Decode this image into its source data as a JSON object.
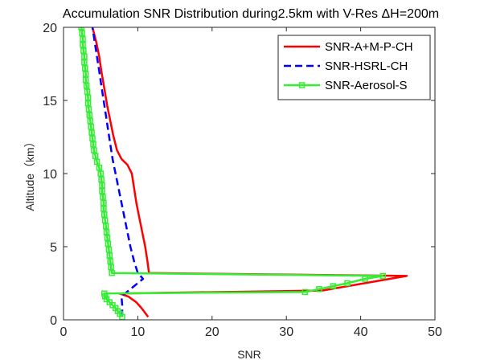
{
  "chart_data": {
    "type": "line",
    "title": "Accumulation SNR Distribution during2.5km with V-Res ΔH=200m",
    "xlabel": "SNR",
    "ylabel": "Altitude（km）",
    "xlim": [
      0,
      50
    ],
    "ylim": [
      0,
      20
    ],
    "xticks": [
      "0",
      "10",
      "20",
      "30",
      "40",
      "50"
    ],
    "yticks": [
      "0",
      "5",
      "10",
      "15",
      "20"
    ],
    "grid": false,
    "legend_position": "top-right",
    "series": [
      {
        "name": "SNR-A+M-P-CH",
        "color": "#ff0000",
        "style": "solid",
        "marker": "none",
        "points": [
          [
            11.4,
            0.2
          ],
          [
            10.5,
            0.8
          ],
          [
            9.8,
            1.2
          ],
          [
            8.7,
            1.6
          ],
          [
            7.5,
            1.8
          ],
          [
            34.8,
            2.0
          ],
          [
            46.2,
            3.0
          ],
          [
            11.5,
            3.2
          ],
          [
            11.3,
            4.0
          ],
          [
            11.0,
            5.0
          ],
          [
            10.6,
            6.0
          ],
          [
            10.2,
            7.0
          ],
          [
            9.8,
            8.0
          ],
          [
            9.5,
            9.0
          ],
          [
            9.2,
            10.0
          ],
          [
            8.6,
            10.6
          ],
          [
            7.8,
            11.0
          ],
          [
            7.2,
            11.6
          ],
          [
            6.7,
            12.6
          ],
          [
            6.3,
            13.6
          ],
          [
            5.9,
            14.6
          ],
          [
            5.5,
            15.8
          ],
          [
            5.1,
            17.0
          ],
          [
            4.8,
            18.0
          ],
          [
            4.4,
            19.0
          ],
          [
            3.9,
            20.0
          ]
        ]
      },
      {
        "name": "SNR-HSRL-CH",
        "color": "#0000ff",
        "style": "dashed",
        "marker": "none",
        "points": [
          [
            7.9,
            0.2
          ],
          [
            7.9,
            1.0
          ],
          [
            7.8,
            1.6
          ],
          [
            10.7,
            2.8
          ],
          [
            10.0,
            3.2
          ],
          [
            9.5,
            4.0
          ],
          [
            9.0,
            5.0
          ],
          [
            8.6,
            6.0
          ],
          [
            8.2,
            7.0
          ],
          [
            7.8,
            8.0
          ],
          [
            7.4,
            9.0
          ],
          [
            7.0,
            10.0
          ],
          [
            6.6,
            11.0
          ],
          [
            6.3,
            12.0
          ],
          [
            6.0,
            13.0
          ],
          [
            5.7,
            14.0
          ],
          [
            5.4,
            15.0
          ],
          [
            5.1,
            16.0
          ],
          [
            4.8,
            17.0
          ],
          [
            4.5,
            18.0
          ],
          [
            4.2,
            19.0
          ],
          [
            3.9,
            20.0
          ]
        ]
      },
      {
        "name": "SNR-Aerosol-S",
        "color": "#33ee33",
        "style": "solid",
        "marker": "square",
        "points": [
          [
            7.9,
            0.2
          ],
          [
            7.6,
            0.4
          ],
          [
            7.3,
            0.6
          ],
          [
            7.0,
            0.8
          ],
          [
            6.6,
            1.0
          ],
          [
            6.2,
            1.2
          ],
          [
            5.8,
            1.4
          ],
          [
            5.6,
            1.6
          ],
          [
            5.5,
            1.8
          ],
          [
            32.5,
            1.9
          ],
          [
            34.4,
            2.1
          ],
          [
            36.3,
            2.3
          ],
          [
            38.2,
            2.5
          ],
          [
            40.6,
            2.8
          ],
          [
            43.0,
            3.0
          ],
          [
            6.5,
            3.2
          ],
          [
            6.4,
            3.6
          ],
          [
            6.3,
            4.0
          ],
          [
            6.2,
            4.4
          ],
          [
            6.1,
            4.8
          ],
          [
            6.0,
            5.2
          ],
          [
            5.9,
            5.6
          ],
          [
            5.8,
            6.0
          ],
          [
            5.7,
            6.4
          ],
          [
            5.6,
            6.8
          ],
          [
            5.5,
            7.2
          ],
          [
            5.4,
            7.6
          ],
          [
            5.4,
            8.0
          ],
          [
            5.3,
            8.4
          ],
          [
            5.2,
            8.8
          ],
          [
            5.2,
            9.2
          ],
          [
            5.1,
            9.6
          ],
          [
            5.0,
            10.0
          ],
          [
            4.8,
            10.4
          ],
          [
            4.5,
            10.8
          ],
          [
            4.3,
            11.2
          ],
          [
            4.1,
            11.6
          ],
          [
            4.0,
            12.0
          ],
          [
            3.9,
            12.4
          ],
          [
            3.8,
            12.8
          ],
          [
            3.7,
            13.2
          ],
          [
            3.6,
            13.6
          ],
          [
            3.5,
            14.0
          ],
          [
            3.4,
            14.4
          ],
          [
            3.3,
            14.8
          ],
          [
            3.3,
            15.2
          ],
          [
            3.2,
            15.6
          ],
          [
            3.1,
            16.0
          ],
          [
            3.0,
            16.4
          ],
          [
            3.0,
            16.8
          ],
          [
            2.9,
            17.2
          ],
          [
            2.8,
            17.6
          ],
          [
            2.8,
            18.0
          ],
          [
            2.7,
            18.4
          ],
          [
            2.6,
            18.8
          ],
          [
            2.6,
            19.2
          ],
          [
            2.5,
            19.6
          ],
          [
            2.4,
            20.0
          ]
        ]
      }
    ]
  }
}
